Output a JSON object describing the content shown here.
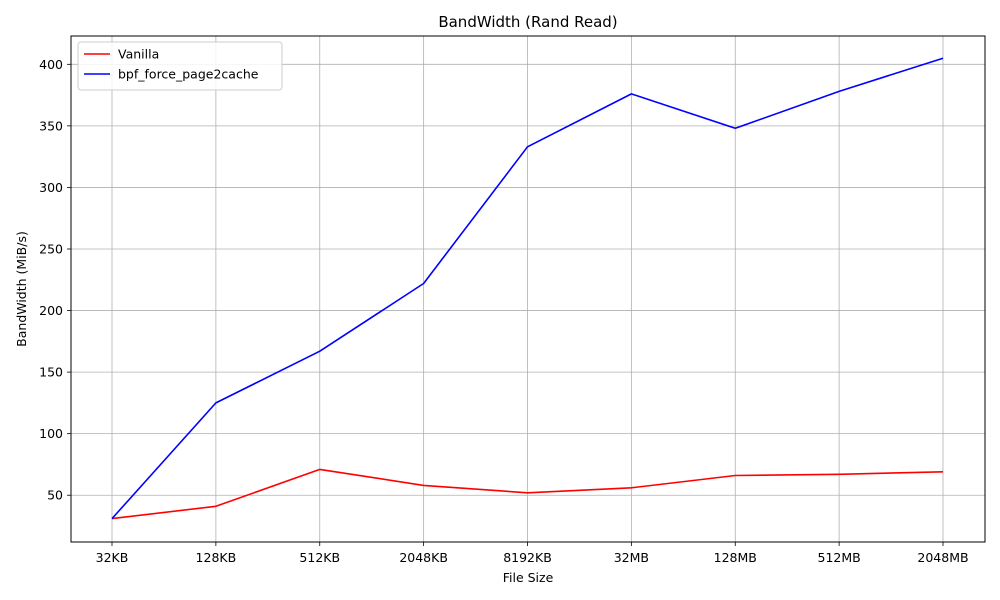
{
  "chart_data": {
    "type": "line",
    "title": "BandWidth (Rand Read)",
    "xlabel": "File Size",
    "ylabel": "BandWidth (MiB/s)",
    "categories": [
      "32KB",
      "128KB",
      "512KB",
      "2048KB",
      "8192KB",
      "32MB",
      "128MB",
      "512MB",
      "2048MB"
    ],
    "ylim": [
      12,
      423
    ],
    "yticks": [
      50,
      100,
      150,
      200,
      250,
      300,
      350,
      400
    ],
    "grid": true,
    "legend_position": "top-left",
    "series": [
      {
        "name": "Vanilla",
        "color": "#ff0000",
        "values": [
          31,
          41,
          71,
          58,
          52,
          56,
          66,
          67,
          69
        ]
      },
      {
        "name": "bpf_force_page2cache",
        "color": "#0000ff",
        "values": [
          31,
          125,
          167,
          222,
          333,
          376,
          348,
          378,
          405
        ]
      }
    ]
  }
}
